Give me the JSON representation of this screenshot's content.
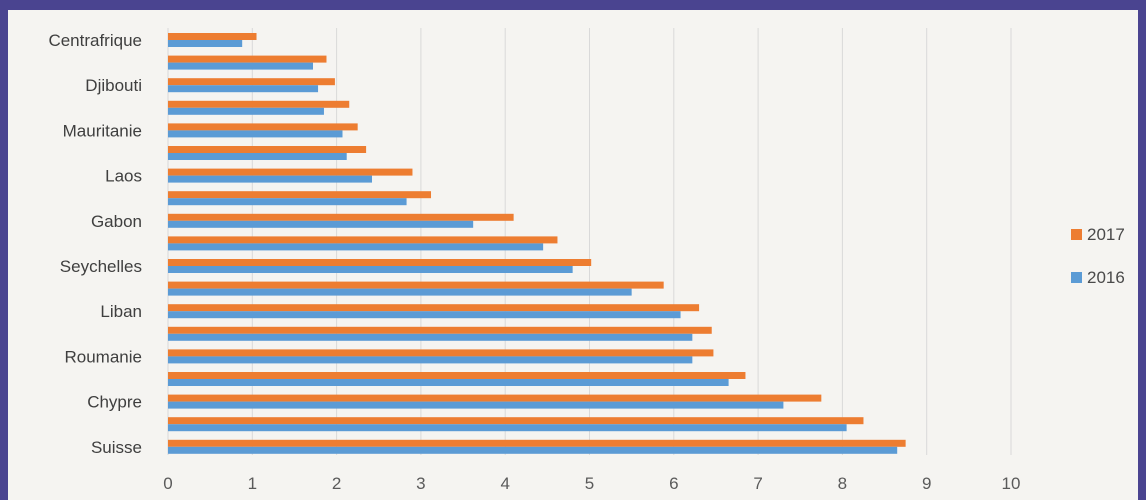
{
  "chart_data": {
    "type": "bar",
    "orientation": "horizontal",
    "categories": [
      "Centrafrique",
      "",
      "Djibouti",
      "",
      "Mauritanie",
      "",
      "Laos",
      "",
      "Gabon",
      "",
      "Seychelles",
      "",
      "Liban",
      "",
      "Roumanie",
      "",
      "Chypre",
      "",
      "Suisse"
    ],
    "series": [
      {
        "name": "2017",
        "color": "#ed7d31",
        "values": [
          1.05,
          1.88,
          1.98,
          2.15,
          2.25,
          2.35,
          2.9,
          3.12,
          4.1,
          4.62,
          5.02,
          5.88,
          6.3,
          6.45,
          6.47,
          6.85,
          7.75,
          8.25,
          8.75
        ]
      },
      {
        "name": "2016",
        "color": "#5b9bd5",
        "values": [
          0.88,
          1.72,
          1.78,
          1.85,
          2.07,
          2.12,
          2.42,
          2.83,
          3.62,
          4.45,
          4.8,
          5.5,
          6.08,
          6.22,
          6.22,
          6.65,
          7.3,
          8.05,
          8.65
        ]
      }
    ],
    "x_ticks": [
      0,
      1,
      2,
      3,
      4,
      5,
      6,
      7,
      8,
      9,
      10
    ],
    "xlim": [
      0,
      10
    ],
    "grid": "vertical",
    "legend": {
      "position": "right"
    }
  }
}
